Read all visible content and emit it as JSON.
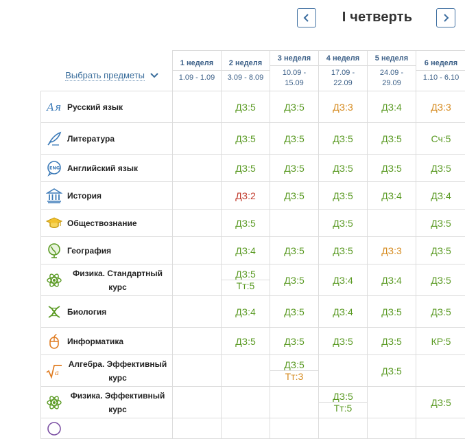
{
  "term": {
    "title": "I четверть"
  },
  "select_subjects_label": "Выбрать предметы",
  "weeks": [
    {
      "name": "1 неделя",
      "dates": "1.09 - 1.09"
    },
    {
      "name": "2 неделя",
      "dates": "3.09 - 8.09"
    },
    {
      "name": "3 неделя",
      "dates": "10.09 - 15.09"
    },
    {
      "name": "4 неделя",
      "dates": "17.09 - 22.09"
    },
    {
      "name": "5 неделя",
      "dates": "24.09 - 29.09"
    },
    {
      "name": "6 неделя",
      "dates": "1.10 - 6.10"
    }
  ],
  "subjects": [
    {
      "name": "Русский язык",
      "icon": "russian-language-icon",
      "cells": [
        [],
        [
          "ДЗ:5"
        ],
        [
          "ДЗ:5"
        ],
        [
          "ДЗ:3"
        ],
        [
          "ДЗ:4"
        ],
        [
          "ДЗ:3"
        ]
      ]
    },
    {
      "name": "Литература",
      "icon": "literature-quill-icon",
      "cells": [
        [],
        [
          "ДЗ:5"
        ],
        [
          "ДЗ:5"
        ],
        [
          "ДЗ:5"
        ],
        [
          "ДЗ:5"
        ],
        [
          "Сч:5"
        ]
      ]
    },
    {
      "name": "Английский язык",
      "icon": "english-eng-icon",
      "cells": [
        [],
        [
          "ДЗ:5"
        ],
        [
          "ДЗ:5"
        ],
        [
          "ДЗ:5"
        ],
        [
          "ДЗ:5"
        ],
        [
          "ДЗ:5"
        ]
      ]
    },
    {
      "name": "История",
      "icon": "history-columns-icon",
      "cells": [
        [],
        [
          "ДЗ:2"
        ],
        [
          "ДЗ:5"
        ],
        [
          "ДЗ:5"
        ],
        [
          "ДЗ:4"
        ],
        [
          "ДЗ:4"
        ]
      ]
    },
    {
      "name": "Обществознание",
      "icon": "graduation-cap-icon",
      "cells": [
        [],
        [
          "ДЗ:5"
        ],
        [],
        [
          "ДЗ:5"
        ],
        [],
        [
          "ДЗ:5"
        ]
      ]
    },
    {
      "name": "География",
      "icon": "globe-icon",
      "cells": [
        [],
        [
          "ДЗ:4"
        ],
        [
          "ДЗ:5"
        ],
        [
          "ДЗ:5"
        ],
        [
          "ДЗ:3"
        ],
        [
          "ДЗ:5"
        ]
      ]
    },
    {
      "name": "Физика. Стандартный курс",
      "icon": "atom-icon",
      "cells": [
        [],
        [
          "ДЗ:5",
          "Тт:5"
        ],
        [
          "ДЗ:5"
        ],
        [
          "ДЗ:4"
        ],
        [
          "ДЗ:4"
        ],
        [
          "ДЗ:5"
        ]
      ]
    },
    {
      "name": "Биология",
      "icon": "dna-icon",
      "cells": [
        [],
        [
          "ДЗ:4"
        ],
        [
          "ДЗ:5"
        ],
        [
          "ДЗ:4"
        ],
        [
          "ДЗ:5"
        ],
        [
          "ДЗ:5"
        ]
      ]
    },
    {
      "name": "Информатика",
      "icon": "computer-mouse-icon",
      "cells": [
        [],
        [
          "ДЗ:5"
        ],
        [
          "ДЗ:5"
        ],
        [
          "ДЗ:5"
        ],
        [
          "ДЗ:5"
        ],
        [
          "КР:5"
        ]
      ]
    },
    {
      "name": "Алгебра. Эффективный курс",
      "icon": "square-root-icon",
      "cells": [
        [],
        [],
        [
          "ДЗ:5",
          "Тт:3"
        ],
        [],
        [
          "ДЗ:5"
        ],
        []
      ]
    },
    {
      "name": "Физика. Эффективный курс",
      "icon": "atom-icon",
      "cells": [
        [],
        [],
        [],
        [
          "ДЗ:5",
          "Тт:5"
        ],
        [],
        [
          "ДЗ:5"
        ]
      ]
    }
  ],
  "colors": {
    "grade_5": "#5a9a23",
    "grade_4": "#5a9a23",
    "grade_3": "#d58a1e",
    "grade_2": "#c0392b",
    "accent": "#3b6e9c"
  }
}
